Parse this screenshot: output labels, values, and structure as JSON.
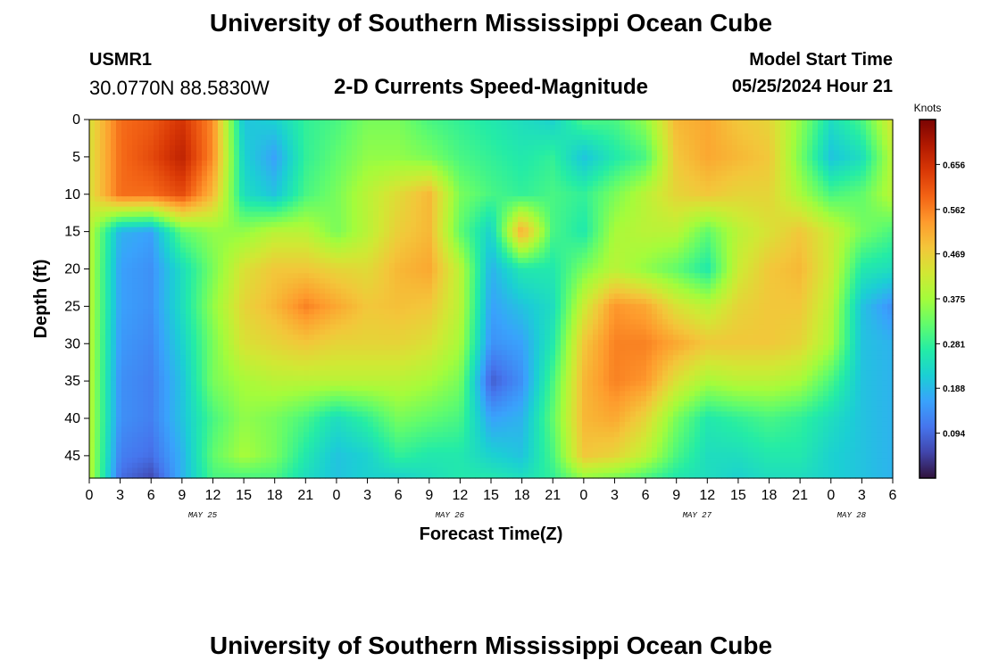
{
  "header": {
    "title": "University of Southern Mississippi Ocean Cube",
    "station_id": "USMR1",
    "station_coords": "30.0770N  88.5830W",
    "subtitle": "2-D Currents Speed-Magnitude",
    "model_start_label": "Model Start Time",
    "model_start_value": "05/25/2024 Hour 21"
  },
  "footer": {
    "title": "University of Southern Mississippi Ocean Cube"
  },
  "chart_data": {
    "type": "heatmap",
    "title": "2-D Currents Speed-Magnitude",
    "xlabel": "Forecast Time(Z)",
    "ylabel": "Depth (ft)",
    "x_ticks": [
      "0",
      "3",
      "6",
      "9",
      "12",
      "15",
      "18",
      "21",
      "0",
      "3",
      "6",
      "9",
      "12",
      "15",
      "18",
      "21",
      "0",
      "3",
      "6",
      "9",
      "12",
      "15",
      "18",
      "21",
      "0",
      "3",
      "6"
    ],
    "x_range_hours": [
      0,
      78
    ],
    "date_labels": [
      {
        "label": "MAY 25",
        "hour": 11
      },
      {
        "label": "MAY 26",
        "hour": 35
      },
      {
        "label": "MAY 27",
        "hour": 59
      },
      {
        "label": "MAY 28",
        "hour": 74
      }
    ],
    "y_ticks": [
      0,
      5,
      10,
      15,
      20,
      25,
      30,
      35,
      40,
      45
    ],
    "y_range_ft": [
      0,
      48
    ],
    "y_inverted": true,
    "colorbar": {
      "unit_label": "Knots",
      "ticks": [
        0.094,
        0.188,
        0.281,
        0.375,
        0.469,
        0.562,
        0.656
      ],
      "range": [
        0.0,
        0.75
      ],
      "colormap": [
        "#30123b",
        "#4145ab",
        "#4675ed",
        "#39a2fc",
        "#1bcfd4",
        "#24eca6",
        "#61fc6c",
        "#a4fc3b",
        "#d1e834",
        "#f3c63a",
        "#fe9b2d",
        "#f36315",
        "#d93806",
        "#b11901",
        "#7a0403"
      ]
    },
    "grid_columns_hours": [
      0,
      3,
      6,
      9,
      12,
      15,
      18,
      21,
      24,
      27,
      30,
      33,
      36,
      39,
      42,
      45,
      48,
      51,
      54,
      57,
      60,
      63,
      66,
      69,
      72,
      75,
      78
    ],
    "grid_rows_ft": [
      0,
      5,
      10,
      15,
      20,
      25,
      30,
      35,
      40,
      45,
      48
    ],
    "values": [
      [
        0.44,
        0.58,
        0.6,
        0.65,
        0.55,
        0.2,
        0.22,
        0.28,
        0.3,
        0.34,
        0.34,
        0.3,
        0.28,
        0.26,
        0.24,
        0.22,
        0.3,
        0.3,
        0.36,
        0.5,
        0.52,
        0.48,
        0.46,
        0.36,
        0.24,
        0.3,
        0.44
      ],
      [
        0.44,
        0.58,
        0.62,
        0.68,
        0.55,
        0.22,
        0.16,
        0.28,
        0.32,
        0.36,
        0.36,
        0.34,
        0.3,
        0.28,
        0.26,
        0.28,
        0.2,
        0.26,
        0.3,
        0.48,
        0.52,
        0.5,
        0.48,
        0.34,
        0.2,
        0.24,
        0.4
      ],
      [
        0.44,
        0.58,
        0.58,
        0.62,
        0.5,
        0.24,
        0.2,
        0.3,
        0.34,
        0.4,
        0.45,
        0.5,
        0.34,
        0.3,
        0.28,
        0.3,
        0.28,
        0.34,
        0.4,
        0.46,
        0.48,
        0.46,
        0.46,
        0.38,
        0.3,
        0.32,
        0.4
      ],
      [
        0.4,
        0.18,
        0.16,
        0.32,
        0.36,
        0.36,
        0.4,
        0.4,
        0.34,
        0.4,
        0.47,
        0.5,
        0.32,
        0.22,
        0.52,
        0.3,
        0.26,
        0.38,
        0.4,
        0.4,
        0.32,
        0.4,
        0.44,
        0.48,
        0.42,
        0.34,
        0.3
      ],
      [
        0.4,
        0.16,
        0.14,
        0.24,
        0.34,
        0.44,
        0.48,
        0.48,
        0.46,
        0.45,
        0.5,
        0.52,
        0.4,
        0.18,
        0.26,
        0.26,
        0.34,
        0.4,
        0.36,
        0.32,
        0.26,
        0.42,
        0.48,
        0.5,
        0.42,
        0.26,
        0.24
      ],
      [
        0.4,
        0.16,
        0.14,
        0.24,
        0.36,
        0.46,
        0.5,
        0.56,
        0.52,
        0.48,
        0.49,
        0.48,
        0.4,
        0.16,
        0.2,
        0.24,
        0.42,
        0.54,
        0.52,
        0.44,
        0.4,
        0.46,
        0.48,
        0.48,
        0.4,
        0.2,
        0.14
      ],
      [
        0.4,
        0.15,
        0.13,
        0.22,
        0.34,
        0.44,
        0.46,
        0.48,
        0.46,
        0.46,
        0.46,
        0.44,
        0.38,
        0.14,
        0.16,
        0.26,
        0.48,
        0.56,
        0.56,
        0.52,
        0.48,
        0.48,
        0.48,
        0.46,
        0.38,
        0.2,
        0.18
      ],
      [
        0.4,
        0.14,
        0.12,
        0.2,
        0.34,
        0.38,
        0.4,
        0.4,
        0.4,
        0.4,
        0.4,
        0.38,
        0.34,
        0.08,
        0.14,
        0.3,
        0.5,
        0.56,
        0.54,
        0.44,
        0.38,
        0.4,
        0.4,
        0.38,
        0.3,
        0.2,
        0.18
      ],
      [
        0.4,
        0.14,
        0.12,
        0.2,
        0.3,
        0.36,
        0.34,
        0.3,
        0.24,
        0.28,
        0.34,
        0.32,
        0.3,
        0.16,
        0.18,
        0.32,
        0.5,
        0.52,
        0.46,
        0.34,
        0.26,
        0.28,
        0.3,
        0.28,
        0.24,
        0.2,
        0.18
      ],
      [
        0.4,
        0.12,
        0.1,
        0.18,
        0.32,
        0.38,
        0.34,
        0.26,
        0.2,
        0.22,
        0.28,
        0.26,
        0.26,
        0.22,
        0.2,
        0.3,
        0.48,
        0.46,
        0.4,
        0.3,
        0.24,
        0.24,
        0.26,
        0.26,
        0.22,
        0.2,
        0.18
      ],
      [
        0.4,
        0.1,
        0.06,
        0.18,
        0.3,
        0.3,
        0.3,
        0.24,
        0.2,
        0.22,
        0.22,
        0.24,
        0.26,
        0.26,
        0.24,
        0.28,
        0.36,
        0.34,
        0.3,
        0.26,
        0.24,
        0.22,
        0.24,
        0.24,
        0.22,
        0.2,
        0.18
      ]
    ]
  }
}
